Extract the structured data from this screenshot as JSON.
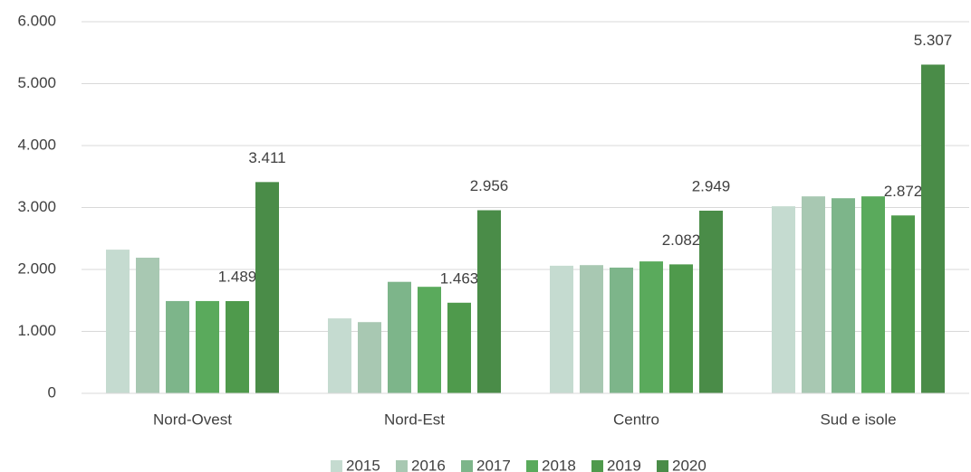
{
  "chart_data": {
    "type": "bar",
    "categories": [
      "Nord-Ovest",
      "Nord-Est",
      "Centro",
      "Sud e isole"
    ],
    "series": [
      {
        "name": "2015",
        "color": "#c5dbd0",
        "values": [
          2320,
          1210,
          2060,
          3020
        ]
      },
      {
        "name": "2016",
        "color": "#a8c8b2",
        "values": [
          2190,
          1150,
          2070,
          3180
        ]
      },
      {
        "name": "2017",
        "color": "#7db58a",
        "values": [
          1490,
          1800,
          2030,
          3150
        ]
      },
      {
        "name": "2018",
        "color": "#5aaa5c",
        "values": [
          1490,
          1720,
          2130,
          3180
        ]
      },
      {
        "name": "2019",
        "color": "#4f9a4c",
        "values": [
          1489,
          1463,
          2082,
          2872
        ],
        "value_labels": [
          "1.489",
          "1.463",
          "2.082",
          "2.872"
        ]
      },
      {
        "name": "2020",
        "color": "#4a8c48",
        "values": [
          3411,
          2956,
          2949,
          5307
        ],
        "value_labels": [
          "3.411",
          "2.956",
          "2.949",
          "5.307"
        ]
      }
    ],
    "ylim": [
      0,
      6000
    ],
    "yticks": [
      {
        "value": 0,
        "label": "0"
      },
      {
        "value": 1000,
        "label": "1.000"
      },
      {
        "value": 2000,
        "label": "2.000"
      },
      {
        "value": 3000,
        "label": "3.000"
      },
      {
        "value": 4000,
        "label": "4.000"
      },
      {
        "value": 5000,
        "label": "5.000"
      },
      {
        "value": 6000,
        "label": "6.000"
      }
    ],
    "grid": true,
    "legend": "bottom"
  }
}
